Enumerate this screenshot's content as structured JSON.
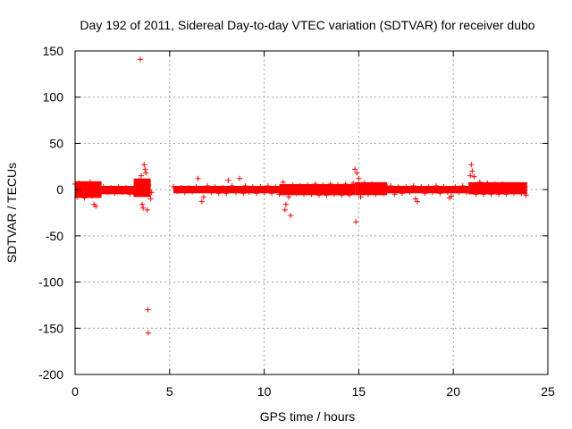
{
  "chart_data": {
    "type": "scatter",
    "title": "Day 192 of 2011, Sidereal Day-to-day VTEC variation (SDTVAR) for receiver dubo",
    "xlabel": "GPS time / hours",
    "ylabel": "SDTVAR / TECUs",
    "xlim": [
      0,
      25
    ],
    "ylim": [
      -200,
      150
    ],
    "x_ticks": [
      0,
      5,
      10,
      15,
      20,
      25
    ],
    "y_ticks": [
      -200,
      -150,
      -100,
      -50,
      0,
      50,
      100,
      150
    ],
    "x_tick_labels": [
      "0",
      "5",
      "10",
      "15",
      "20",
      "25"
    ],
    "y_tick_labels": [
      "-200",
      "-150",
      "-100",
      "-50",
      "0",
      "50",
      "100",
      "150"
    ],
    "grid": true,
    "marker": "+",
    "series_color": "#ff0000",
    "series": [
      {
        "name": "SDTVAR",
        "points": [
          [
            0.0,
            6
          ],
          [
            0.1,
            -8
          ],
          [
            0.2,
            7
          ],
          [
            0.3,
            -6
          ],
          [
            0.4,
            5
          ],
          [
            0.5,
            -9
          ],
          [
            0.6,
            6
          ],
          [
            0.7,
            -5
          ],
          [
            0.8,
            8
          ],
          [
            0.9,
            -7
          ],
          [
            1.0,
            4
          ],
          [
            1.1,
            -6
          ],
          [
            1.2,
            5
          ],
          [
            1.0,
            -16
          ],
          [
            1.1,
            -18
          ],
          [
            1.3,
            -4
          ],
          [
            1.5,
            3
          ],
          [
            1.7,
            -3
          ],
          [
            1.9,
            2
          ],
          [
            2.1,
            -4
          ],
          [
            2.3,
            3
          ],
          [
            2.5,
            -3
          ],
          [
            2.7,
            2
          ],
          [
            2.9,
            -5
          ],
          [
            3.1,
            -4
          ],
          [
            3.2,
            3
          ],
          [
            3.3,
            5
          ],
          [
            3.4,
            10
          ],
          [
            3.45,
            141
          ],
          [
            3.5,
            15
          ],
          [
            3.55,
            -16
          ],
          [
            3.6,
            -20
          ],
          [
            3.65,
            27
          ],
          [
            3.7,
            22
          ],
          [
            3.75,
            18
          ],
          [
            3.8,
            8
          ],
          [
            3.82,
            -22
          ],
          [
            3.85,
            -130
          ],
          [
            3.87,
            -155
          ],
          [
            3.9,
            5
          ],
          [
            4.0,
            -10
          ],
          [
            4.05,
            -3
          ],
          [
            5.2,
            3
          ],
          [
            5.4,
            -2
          ],
          [
            5.6,
            2
          ],
          [
            5.8,
            -3
          ],
          [
            6.0,
            2
          ],
          [
            6.2,
            -2
          ],
          [
            6.4,
            3
          ],
          [
            6.5,
            12
          ],
          [
            6.7,
            -13
          ],
          [
            6.8,
            -8
          ],
          [
            7.0,
            4
          ],
          [
            7.2,
            -3
          ],
          [
            7.4,
            3
          ],
          [
            7.6,
            -4
          ],
          [
            7.8,
            2
          ],
          [
            8.0,
            -4
          ],
          [
            8.1,
            10
          ],
          [
            8.3,
            4
          ],
          [
            8.5,
            -3
          ],
          [
            8.7,
            12
          ],
          [
            8.9,
            -4
          ],
          [
            9.0,
            4
          ],
          [
            9.2,
            -3
          ],
          [
            9.4,
            3
          ],
          [
            9.6,
            -4
          ],
          [
            9.8,
            3
          ],
          [
            10.0,
            -3
          ],
          [
            10.2,
            4
          ],
          [
            10.4,
            -4
          ],
          [
            10.6,
            3
          ],
          [
            10.8,
            -5
          ],
          [
            11.0,
            8
          ],
          [
            11.1,
            -22
          ],
          [
            11.15,
            -16
          ],
          [
            11.3,
            -8
          ],
          [
            11.4,
            -28
          ],
          [
            11.5,
            5
          ],
          [
            11.7,
            -4
          ],
          [
            11.9,
            4
          ],
          [
            12.1,
            -5
          ],
          [
            12.3,
            5
          ],
          [
            12.5,
            -5
          ],
          [
            12.7,
            6
          ],
          [
            12.9,
            -6
          ],
          [
            13.1,
            5
          ],
          [
            13.3,
            -6
          ],
          [
            13.5,
            6
          ],
          [
            13.7,
            -5
          ],
          [
            13.9,
            5
          ],
          [
            14.1,
            -6
          ],
          [
            14.3,
            6
          ],
          [
            14.5,
            -6
          ],
          [
            14.7,
            7
          ],
          [
            14.8,
            22
          ],
          [
            14.85,
            -35
          ],
          [
            14.9,
            18
          ],
          [
            15.0,
            12
          ],
          [
            15.1,
            -8
          ],
          [
            15.3,
            7
          ],
          [
            15.5,
            -5
          ],
          [
            15.7,
            6
          ],
          [
            15.9,
            -5
          ],
          [
            16.1,
            5
          ],
          [
            16.3,
            -4
          ],
          [
            16.5,
            3
          ],
          [
            16.7,
            4
          ],
          [
            16.9,
            -5
          ],
          [
            17.1,
            3
          ],
          [
            17.3,
            -4
          ],
          [
            17.5,
            3
          ],
          [
            17.7,
            -3
          ],
          [
            17.9,
            4
          ],
          [
            18.0,
            -10
          ],
          [
            18.1,
            -13
          ],
          [
            18.3,
            3
          ],
          [
            18.5,
            -4
          ],
          [
            18.7,
            3
          ],
          [
            18.9,
            -3
          ],
          [
            19.1,
            4
          ],
          [
            19.3,
            -4
          ],
          [
            19.5,
            3
          ],
          [
            19.7,
            -3
          ],
          [
            19.8,
            -9
          ],
          [
            19.9,
            -7
          ],
          [
            20.1,
            3
          ],
          [
            20.3,
            -3
          ],
          [
            20.5,
            4
          ],
          [
            20.7,
            -3
          ],
          [
            20.9,
            15
          ],
          [
            20.95,
            27
          ],
          [
            21.0,
            20
          ],
          [
            21.1,
            14
          ],
          [
            21.2,
            -5
          ],
          [
            21.4,
            8
          ],
          [
            21.6,
            -5
          ],
          [
            21.8,
            7
          ],
          [
            22.0,
            -5
          ],
          [
            22.2,
            6
          ],
          [
            22.4,
            -5
          ],
          [
            22.6,
            6
          ],
          [
            22.8,
            -5
          ],
          [
            23.0,
            5
          ],
          [
            23.2,
            -4
          ],
          [
            23.4,
            5
          ],
          [
            23.6,
            -4
          ],
          [
            23.8,
            3
          ],
          [
            23.85,
            -6
          ]
        ]
      }
    ],
    "dense_bands": [
      {
        "x_start": 0.0,
        "x_end": 1.4,
        "y_low": -9,
        "y_high": 9
      },
      {
        "x_start": 1.4,
        "x_end": 3.1,
        "y_low": -5,
        "y_high": 4
      },
      {
        "x_start": 3.1,
        "x_end": 4.0,
        "y_low": -8,
        "y_high": 12
      },
      {
        "x_start": 5.2,
        "x_end": 10.8,
        "y_low": -4,
        "y_high": 4
      },
      {
        "x_start": 10.8,
        "x_end": 14.8,
        "y_low": -6,
        "y_high": 6
      },
      {
        "x_start": 14.8,
        "x_end": 16.5,
        "y_low": -6,
        "y_high": 8
      },
      {
        "x_start": 16.5,
        "x_end": 20.8,
        "y_low": -4,
        "y_high": 4
      },
      {
        "x_start": 20.8,
        "x_end": 23.9,
        "y_low": -5,
        "y_high": 8
      }
    ]
  }
}
